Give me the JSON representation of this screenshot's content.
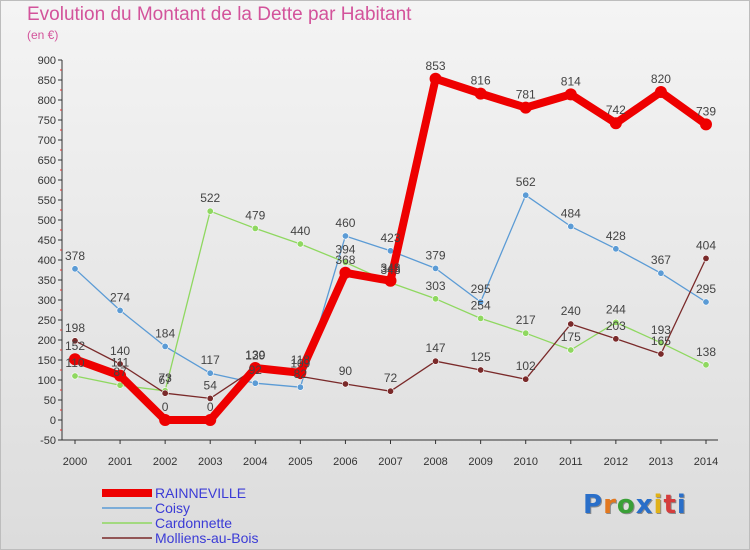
{
  "title": "Evolution du Montant de la Dette par Habitant",
  "unit": "(en €)",
  "logo": {
    "text": "Proxiti",
    "colors": [
      "#2a6fc9",
      "#e2781f",
      "#3aa037",
      "#2a6fc9",
      "#e0b118",
      "#d43d3d",
      "#2a6fc9"
    ]
  },
  "chart_data": {
    "type": "line",
    "title": "Evolution du Montant de la Dette par Habitant",
    "ylabel": "(en €)",
    "xlabel": "",
    "x": [
      "2000",
      "2001",
      "2002",
      "2003",
      "2004",
      "2005",
      "2006",
      "2007",
      "2008",
      "2009",
      "2010",
      "2011",
      "2012",
      "2013",
      "2014"
    ],
    "ylim": [
      -50,
      900
    ],
    "yticks": [
      -50,
      0,
      50,
      100,
      150,
      200,
      250,
      300,
      350,
      400,
      450,
      500,
      550,
      600,
      650,
      700,
      750,
      800,
      850,
      900
    ],
    "grid": false,
    "legend": "bottom-left",
    "series": [
      {
        "name": "RAINNEVILLE",
        "color": "#ee0000",
        "values": [
          152,
          111,
          0,
          0,
          130,
          118,
          368,
          348,
          853,
          816,
          781,
          814,
          742,
          820,
          739
        ]
      },
      {
        "name": "Coisy",
        "color": "#5b9bd5",
        "values": [
          378,
          274,
          184,
          117,
          92,
          82,
          460,
          423,
          379,
          295,
          562,
          484,
          428,
          367,
          295
        ]
      },
      {
        "name": "Cardonnette",
        "color": "#8fd860",
        "values": [
          110,
          87,
          73,
          522,
          479,
          440,
          394,
          343,
          303,
          254,
          217,
          175,
          244,
          193,
          138
        ]
      },
      {
        "name": "Molliens-au-Bois",
        "color": "#7a2a2a",
        "values": [
          198,
          140,
          67,
          54,
          129,
          109,
          90,
          72,
          147,
          125,
          102,
          240,
          203,
          165,
          404
        ]
      }
    ]
  }
}
